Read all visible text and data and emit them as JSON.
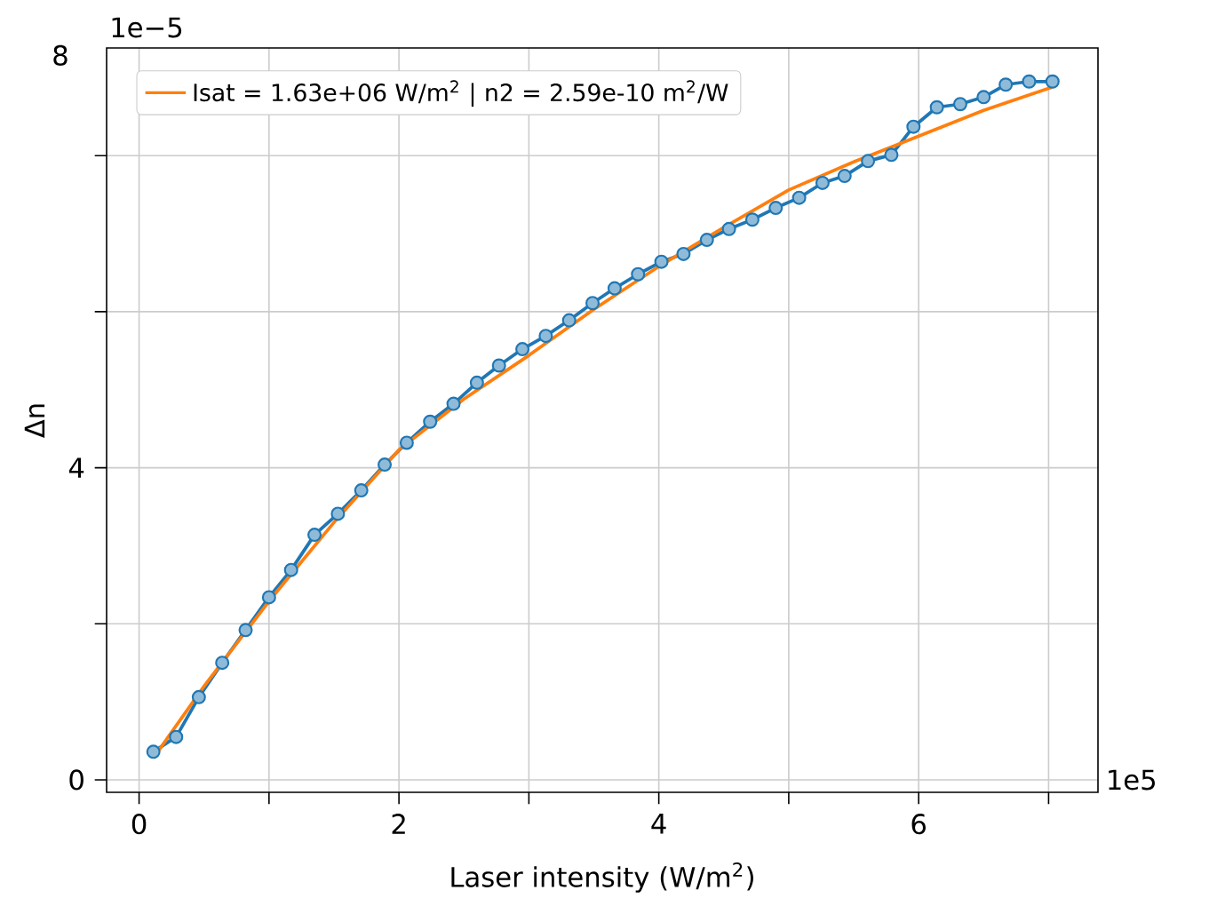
{
  "chart_data": {
    "type": "line",
    "xlabel": "Laser intensity (W/m$^{2}$)",
    "ylabel": "Δn",
    "annotations": [
      "1e−5",
      "1e5",
      "8"
    ],
    "xlim": [
      -0.25,
      7.38
    ],
    "ylim": [
      -0.16,
      9.38
    ],
    "xticks": [
      0,
      {
        "value": 1,
        "label": null
      },
      2,
      {
        "value": 3,
        "label": null
      },
      4,
      {
        "value": 5,
        "label": null
      },
      6,
      {
        "value": 7,
        "label": null
      }
    ],
    "yticks": [
      0,
      {
        "value": 2,
        "label": null
      },
      4,
      {
        "value": 6,
        "label": null
      },
      {
        "value": 8,
        "label": null
      }
    ],
    "grid": true,
    "legend": "top left",
    "series": [
      {
        "color": "#1f77b4",
        "marker": "circle",
        "x": [
          0.11,
          0.285,
          0.46,
          0.64,
          0.82,
          1.0,
          1.17,
          1.35,
          1.53,
          1.71,
          1.89,
          2.06,
          2.24,
          2.42,
          2.6,
          2.77,
          2.95,
          3.13,
          3.31,
          3.49,
          3.66,
          3.84,
          4.02,
          4.19,
          4.37,
          4.54,
          4.72,
          4.9,
          5.08,
          5.26,
          5.43,
          5.61,
          5.79,
          5.96,
          6.14,
          6.32,
          6.5,
          6.67,
          6.85,
          7.03
        ],
        "values": [
          0.36,
          0.55,
          1.06,
          1.5,
          1.92,
          2.34,
          2.69,
          3.14,
          3.41,
          3.71,
          4.04,
          4.32,
          4.59,
          4.82,
          5.09,
          5.31,
          5.52,
          5.69,
          5.89,
          6.11,
          6.3,
          6.48,
          6.64,
          6.74,
          6.92,
          7.06,
          7.18,
          7.33,
          7.46,
          7.65,
          7.74,
          7.93,
          8.01,
          8.37,
          8.62,
          8.66,
          8.75,
          8.91,
          8.95,
          8.95
        ]
      },
      {
        "type": "line",
        "name": "Isat = 1.63e+06 W/m$^{2}$ | n2 = 2.59e-10 m$^{2}$/W",
        "color": "#ff7f0e",
        "marker": "none",
        "x": [
          0.11,
          0.5,
          1.0,
          1.5,
          2.0,
          2.5,
          3.0,
          3.5,
          4.0,
          4.5,
          5.0,
          5.5,
          6.0,
          6.5,
          7.03
        ],
        "values": [
          0.28,
          1.2,
          2.29,
          3.3,
          4.23,
          4.88,
          5.44,
          6.03,
          6.58,
          7.08,
          7.56,
          7.92,
          8.25,
          8.58,
          8.88
        ]
      }
    ]
  }
}
